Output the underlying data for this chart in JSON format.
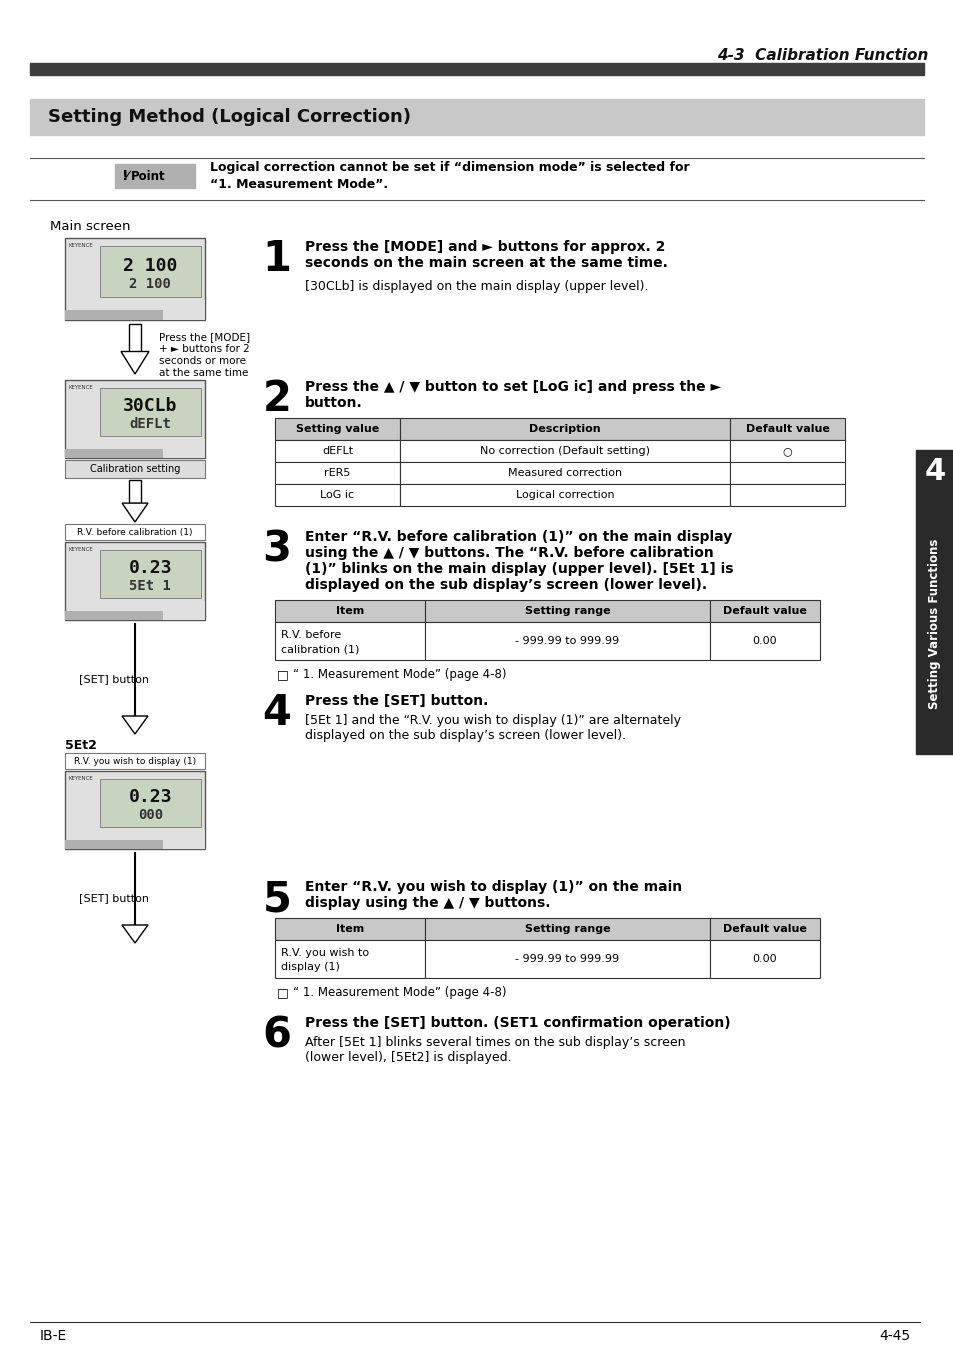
{
  "page_title": "4-3  Calibration Function",
  "section_title": "Setting Method (Logical Correction)",
  "point_text_line1": "Logical correction cannot be set if “dimension mode” is selected for",
  "point_text_line2": "“1. Measurement Mode”.",
  "main_screen_label": "Main screen",
  "step1_num": "1",
  "step1_bold_line1": "Press the [MODE] and ► buttons for approx. 2",
  "step1_bold_line2": "seconds on the main screen at the same time.",
  "step1_body": "[30CLb] is displayed on the main display (upper level).",
  "step2_num": "2",
  "step2_bold_line1": "Press the ▲ / ▼ button to set [LoG ic] and press the ►",
  "step2_bold_line2": "button.",
  "table2_headers": [
    "Setting value",
    "Description",
    "Default value"
  ],
  "table2_rows": [
    [
      "dEFLt",
      "No correction (Default setting)",
      "○"
    ],
    [
      "rER5",
      "Measured correction",
      ""
    ],
    [
      "LoG ic",
      "Logical correction",
      ""
    ]
  ],
  "step3_num": "3",
  "step3_bold_line1": "Enter “R.V. before calibration (1)” on the main display",
  "step3_bold_line2": "using the ▲ / ▼ buttons. The “R.V. before calibration",
  "step3_bold_line3": "(1)” blinks on the main display (upper level). [5Et 1] is",
  "step3_bold_line4": "displayed on the sub display’s screen (lower level).",
  "table3_headers": [
    "Item",
    "Setting range",
    "Default value"
  ],
  "table3_row1_col1": "R.V. before\ncalibration (1)",
  "table3_row1_col2": "- 999.99 to 999.99",
  "table3_row1_col3": "0.00",
  "note3": "“ 1. Measurement Mode” (page 4-8)",
  "step4_num": "4",
  "step4_bold": "Press the [SET] button.",
  "step4_body_line1": "[5Et 1] and the “R.V. you wish to display (1)” are alternately",
  "step4_body_line2": "displayed on the sub display’s screen (lower level).",
  "step5_num": "5",
  "step5_bold_line1": "Enter “R.V. you wish to display (1)” on the main",
  "step5_bold_line2": "display using the ▲ / ▼ buttons.",
  "table5_headers": [
    "Item",
    "Setting range",
    "Default value"
  ],
  "table5_row1_col1": "R.V. you wish to\ndisplay (1)",
  "table5_row1_col2": "- 999.99 to 999.99",
  "table5_row1_col3": "0.00",
  "note5": "“ 1. Measurement Mode” (page 4-8)",
  "step6_num": "6",
  "step6_bold": "Press the [SET] button. (SET1 confirmation operation)",
  "step6_body_line1": "After [5Et 1] blinks several times on the sub display’s screen",
  "step6_body_line2": "(lower level), [5Et2] is displayed.",
  "left_label1_line1": "Press the [MODE]",
  "left_label1_line2": "+ ► buttons for 2",
  "left_label1_line3": "seconds or more",
  "left_label1_line4": "at the same time",
  "left_label_calib": "Calibration setting",
  "left_label_rv1": "R.V. before calibration (1)",
  "left_label_set1": "[SET] button",
  "left_label_set2_top": "5Et2",
  "left_label_rv2": "R.V. you wish to display (1)",
  "left_label_set2": "[SET] button",
  "sidebar_text": "Setting Various Functions",
  "sidebar_num": "4",
  "footer_left": "IB-E",
  "footer_right": "4-45",
  "bg_color": "#ffffff",
  "header_bar_color": "#3d3d3d",
  "section_bg": "#c8c8c8",
  "table_header_bg": "#c8c8c8",
  "table_border": "#333333",
  "sidebar_bg": "#2a2a2a"
}
